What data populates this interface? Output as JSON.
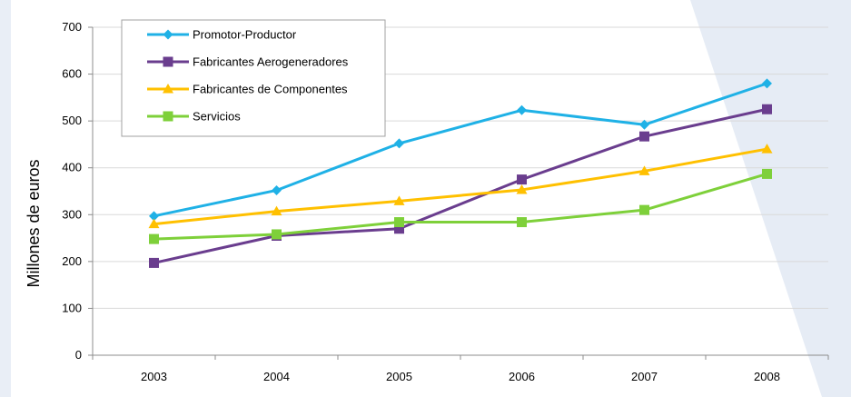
{
  "chart_data": {
    "type": "line",
    "title": "",
    "xlabel": "",
    "ylabel": "Millones de euros",
    "categories": [
      "2003",
      "2004",
      "2005",
      "2006",
      "2007",
      "2008"
    ],
    "ylim": [
      0,
      700
    ],
    "yticks": [
      0,
      100,
      200,
      300,
      400,
      500,
      600,
      700
    ],
    "grid": "horizontal",
    "legend_position": "top-left",
    "series": [
      {
        "name": "Promotor-Productor",
        "values": [
          297,
          352,
          452,
          523,
          492,
          580
        ],
        "color": "#1fb1e6",
        "marker": "diamond"
      },
      {
        "name": "Fabricantes Aerogeneradores",
        "values": [
          197,
          255,
          270,
          375,
          467,
          525
        ],
        "color": "#6a3d8e",
        "marker": "square"
      },
      {
        "name": "Fabricantes de Componentes",
        "values": [
          280,
          307,
          329,
          353,
          393,
          440
        ],
        "color": "#ffc000",
        "marker": "triangle"
      },
      {
        "name": "Servicios",
        "values": [
          248,
          258,
          284,
          284,
          310,
          387
        ],
        "color": "#7ed03a",
        "marker": "square"
      }
    ]
  }
}
